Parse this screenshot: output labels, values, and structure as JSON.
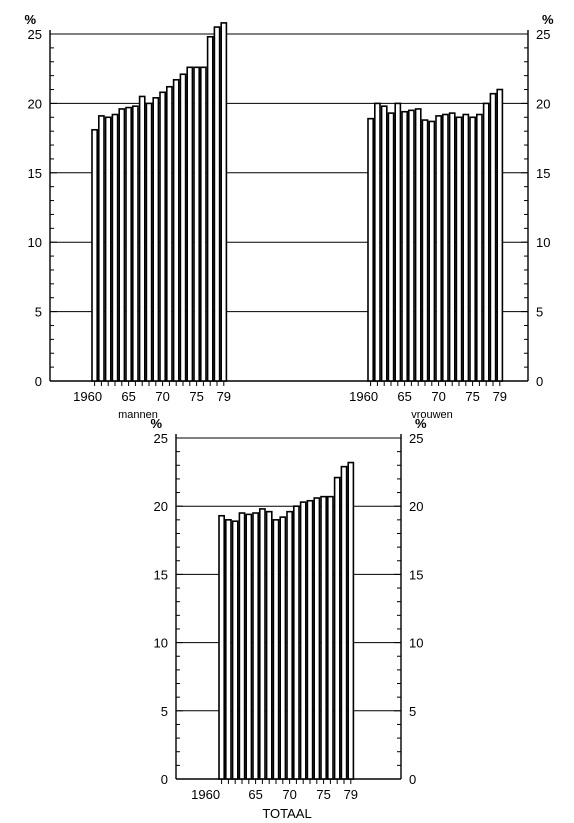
{
  "chart_data": [
    {
      "type": "bar",
      "caption": "mannen",
      "unit_label_left": "%",
      "unit_label_right": "%",
      "x_tick_labels": [
        "1960",
        "65",
        "70",
        "75",
        "79"
      ],
      "y_tick_labels": [
        "0",
        "5",
        "10",
        "15",
        "20",
        "25"
      ],
      "ylim": [
        0,
        25
      ],
      "x": [
        1960,
        1961,
        1962,
        1963,
        1964,
        1965,
        1966,
        1967,
        1968,
        1969,
        1970,
        1971,
        1972,
        1973,
        1974,
        1975,
        1976,
        1977,
        1978,
        1979
      ],
      "values": [
        18.1,
        19.1,
        19.0,
        19.2,
        19.6,
        19.7,
        19.8,
        20.5,
        20.0,
        20.4,
        20.8,
        21.2,
        21.7,
        22.1,
        22.6,
        22.6,
        22.6,
        24.8,
        25.5,
        25.8
      ],
      "grid": "horizontal",
      "bar_fill": "#ffffff",
      "bar_stroke": "#000000"
    },
    {
      "type": "bar",
      "caption": "vrouwen",
      "unit_label_left": "",
      "unit_label_right": "%",
      "x_tick_labels": [
        "1960",
        "65",
        "70",
        "75",
        "79"
      ],
      "y_tick_labels": [
        "0",
        "5",
        "10",
        "15",
        "20",
        "25"
      ],
      "ylim": [
        0,
        25
      ],
      "x": [
        1960,
        1961,
        1962,
        1963,
        1964,
        1965,
        1966,
        1967,
        1968,
        1969,
        1970,
        1971,
        1972,
        1973,
        1974,
        1975,
        1976,
        1977,
        1978,
        1979
      ],
      "values": [
        18.9,
        20.0,
        19.8,
        19.3,
        20.0,
        19.4,
        19.5,
        19.6,
        18.8,
        18.7,
        19.1,
        19.2,
        19.3,
        19.0,
        19.2,
        19.0,
        19.2,
        20.0,
        20.7,
        21.0
      ],
      "grid": "horizontal",
      "bar_fill": "#ffffff",
      "bar_stroke": "#000000"
    },
    {
      "type": "bar",
      "caption": "TOTAAL",
      "unit_label_left": "%",
      "unit_label_right": "%",
      "x_tick_labels": [
        "1960",
        "65",
        "70",
        "75",
        "79"
      ],
      "y_tick_labels": [
        "0",
        "5",
        "10",
        "15",
        "20",
        "25"
      ],
      "ylim": [
        0,
        25
      ],
      "x": [
        1960,
        1961,
        1962,
        1963,
        1964,
        1965,
        1966,
        1967,
        1968,
        1969,
        1970,
        1971,
        1972,
        1973,
        1974,
        1975,
        1976,
        1977,
        1978,
        1979
      ],
      "values": [
        19.3,
        19.0,
        18.9,
        19.5,
        19.4,
        19.5,
        19.8,
        19.6,
        19.0,
        19.2,
        19.6,
        20.0,
        20.3,
        20.4,
        20.6,
        20.7,
        20.7,
        22.1,
        22.9,
        23.2
      ],
      "grid": "horizontal",
      "bar_fill": "#ffffff",
      "bar_stroke": "#000000"
    }
  ]
}
